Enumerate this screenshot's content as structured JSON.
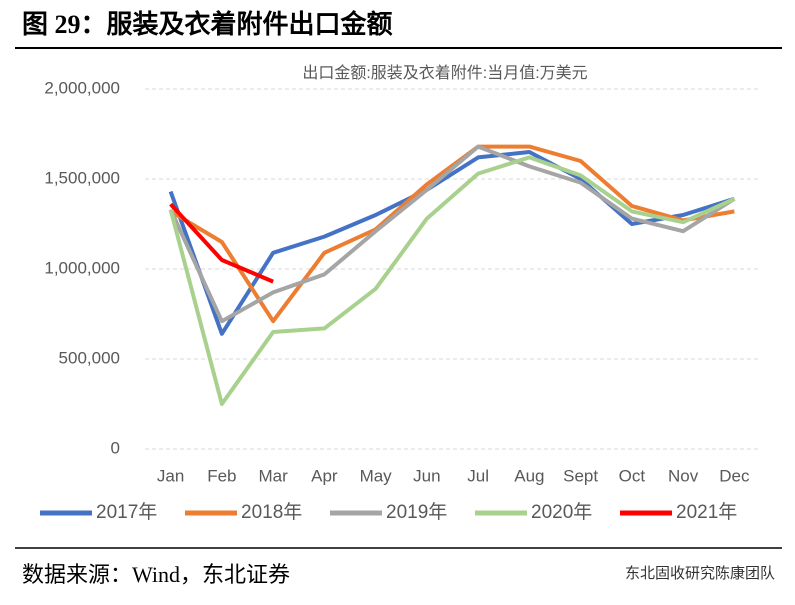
{
  "figure_title": "图 29：服装及衣着附件出口金额",
  "source": "数据来源：Wind，东北证券",
  "watermark": "东北固收研究陈康团队",
  "chart_data": {
    "type": "line",
    "title": "出口金额:服装及衣着附件:当月值:万美元",
    "categories": [
      "Jan",
      "Feb",
      "Mar",
      "Apr",
      "May",
      "Jun",
      "Jul",
      "Aug",
      "Sept",
      "Oct",
      "Nov",
      "Dec"
    ],
    "series": [
      {
        "name": "2017年",
        "color": "#4472c4",
        "values": [
          1430000,
          640000,
          1090000,
          1180000,
          1300000,
          1440000,
          1620000,
          1650000,
          1500000,
          1250000,
          1300000,
          1390000
        ]
      },
      {
        "name": "2018年",
        "color": "#ed7d31",
        "values": [
          1320000,
          1150000,
          710000,
          1090000,
          1220000,
          1470000,
          1680000,
          1680000,
          1600000,
          1350000,
          1270000,
          1320000
        ]
      },
      {
        "name": "2019年",
        "color": "#a5a5a5",
        "values": [
          1330000,
          710000,
          870000,
          970000,
          1210000,
          1440000,
          1680000,
          1570000,
          1480000,
          1280000,
          1210000,
          1390000
        ]
      },
      {
        "name": "2020年",
        "color": "#a9d18e",
        "values": [
          1330000,
          250000,
          650000,
          670000,
          890000,
          1280000,
          1530000,
          1620000,
          1520000,
          1320000,
          1260000,
          1390000
        ]
      },
      {
        "name": "2021年",
        "color": "#ff0000",
        "values": [
          1360000,
          1050000,
          930000,
          null,
          null,
          null,
          null,
          null,
          null,
          null,
          null,
          null
        ]
      }
    ],
    "ylim": [
      0,
      2000000
    ],
    "yticks": [
      0,
      {
        "value": 500000,
        "label": "500,000"
      },
      {
        "value": 1000000,
        "label": "1,000,000"
      },
      {
        "value": 1500000,
        "label": "1,500,000"
      },
      {
        "value": 2000000,
        "label": "2,000,000"
      }
    ],
    "grid": true,
    "legend": "bottom"
  }
}
